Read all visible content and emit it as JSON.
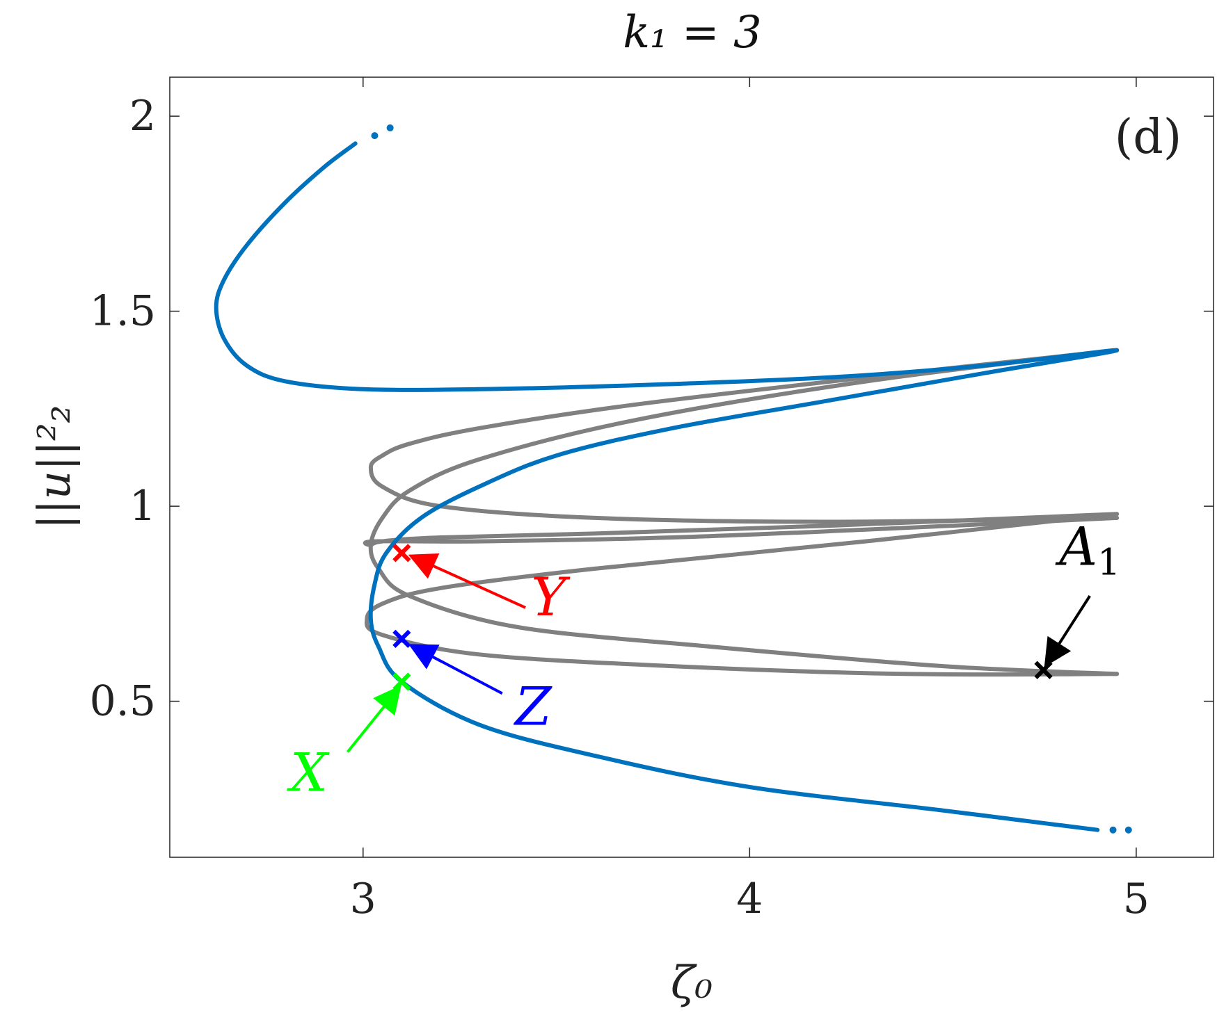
{
  "chart_data": {
    "type": "line",
    "title": "k₁ = 3",
    "xlabel": "ζ₀",
    "ylabel": "||u||²₂",
    "panel_label": "(d)",
    "xlim": [
      2.5,
      5.2
    ],
    "ylim": [
      0.1,
      2.1
    ],
    "xticks": [
      3,
      4,
      5
    ],
    "yticks": [
      0.5,
      1,
      1.5,
      2
    ],
    "xtick_labels": [
      "3",
      "4",
      "5"
    ],
    "ytick_labels": [
      "0.5",
      "1",
      "1.5",
      "2"
    ],
    "grid": false,
    "colors": {
      "primary": "#0072BD",
      "secondary": "#808080",
      "X": "#00FF00",
      "Y": "#FF0000",
      "Z": "#0000FF",
      "A1": "#000000"
    },
    "series": [
      {
        "color": "#0072BD",
        "role": "primary",
        "x": [
          2.98,
          2.9,
          2.8,
          2.7,
          2.64,
          2.62,
          2.64,
          2.7,
          2.8,
          3.0,
          3.3,
          3.7,
          4.2,
          4.6,
          4.95,
          4.6,
          4.2,
          3.8,
          3.5,
          3.3,
          3.15,
          3.06,
          3.03,
          3.02,
          3.04,
          3.1,
          3.3,
          3.6,
          4.0,
          4.5,
          4.9
        ],
        "y": [
          1.93,
          1.87,
          1.78,
          1.67,
          1.58,
          1.51,
          1.43,
          1.36,
          1.32,
          1.3,
          1.3,
          1.31,
          1.33,
          1.36,
          1.4,
          1.34,
          1.27,
          1.2,
          1.13,
          1.05,
          0.97,
          0.88,
          0.8,
          0.71,
          0.64,
          0.55,
          0.44,
          0.36,
          0.28,
          0.22,
          0.17
        ],
        "continuation_top": [
          [
            3.03,
            1.95
          ],
          [
            3.07,
            1.97
          ]
        ],
        "continuation_bottom": [
          [
            4.94,
            0.17
          ],
          [
            4.98,
            0.17
          ]
        ]
      },
      {
        "color": "#808080",
        "role": "secondary",
        "x": [
          4.95,
          4.3,
          3.7,
          3.3,
          3.12,
          3.05,
          3.02,
          3.05,
          3.2,
          3.6,
          4.2,
          4.95
        ],
        "y": [
          1.4,
          1.33,
          1.26,
          1.2,
          1.16,
          1.13,
          1.1,
          1.05,
          1.0,
          0.97,
          0.96,
          0.97
        ]
      },
      {
        "color": "#808080",
        "role": "secondary",
        "x": [
          4.95,
          4.3,
          3.7,
          3.3,
          3.12,
          3.05,
          3.02,
          3.04,
          3.12,
          3.4,
          3.9,
          4.5,
          4.95
        ],
        "y": [
          1.4,
          1.32,
          1.22,
          1.12,
          1.04,
          0.97,
          0.9,
          0.84,
          0.77,
          0.69,
          0.64,
          0.59,
          0.57
        ]
      },
      {
        "color": "#808080",
        "role": "secondary",
        "x": [
          4.95,
          4.2,
          3.6,
          3.2,
          3.05,
          3.02,
          3.03,
          3.3,
          3.8,
          4.3,
          4.95
        ],
        "y": [
          0.98,
          0.95,
          0.93,
          0.92,
          0.91,
          0.9,
          0.91,
          0.91,
          0.92,
          0.94,
          0.97
        ]
      },
      {
        "color": "#808080",
        "role": "secondary",
        "x": [
          4.95,
          4.3,
          3.6,
          3.2,
          3.05,
          3.01,
          3.05,
          3.3,
          3.8,
          4.4,
          4.95
        ],
        "y": [
          0.98,
          0.91,
          0.84,
          0.79,
          0.75,
          0.71,
          0.67,
          0.62,
          0.59,
          0.57,
          0.57
        ]
      }
    ],
    "points": [
      {
        "label": "X",
        "x": 3.1,
        "y": 0.55,
        "color": "#00FF00",
        "label_pos": [
          2.86,
          0.27
        ],
        "arrow_from": [
          2.96,
          0.37
        ],
        "arrow_to": [
          3.09,
          0.53
        ]
      },
      {
        "label": "Y",
        "x": 3.1,
        "y": 0.88,
        "color": "#FF0000",
        "label_pos": [
          3.48,
          0.72
        ],
        "arrow_from": [
          3.42,
          0.74
        ],
        "arrow_to": [
          3.13,
          0.87
        ]
      },
      {
        "label": "Z",
        "x": 3.1,
        "y": 0.66,
        "color": "#0000FF",
        "label_pos": [
          3.44,
          0.44
        ],
        "arrow_from": [
          3.36,
          0.52
        ],
        "arrow_to": [
          3.13,
          0.64
        ]
      },
      {
        "label": "A",
        "subscript": "1",
        "x": 4.76,
        "y": 0.58,
        "color": "#000000",
        "label_pos": [
          4.88,
          0.85
        ],
        "arrow_from": [
          4.88,
          0.77
        ],
        "arrow_to": [
          4.77,
          0.6
        ]
      }
    ]
  }
}
